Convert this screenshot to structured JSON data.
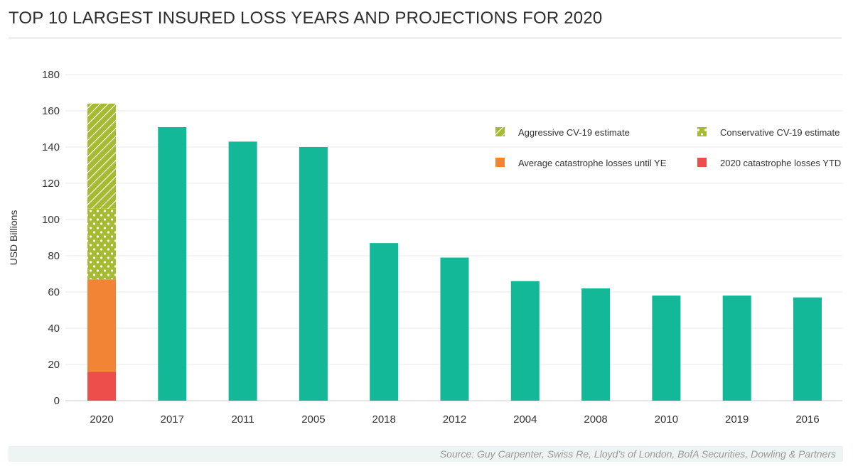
{
  "title": "TOP 10 LARGEST INSURED LOSS YEARS AND PROJECTIONS FOR 2020",
  "source": "Source: Guy Carpenter, Swiss Re, Lloyd’s of London, BofA Securities, Dowling & Partners",
  "colors": {
    "bar": "#12b897",
    "ytd": "#ee4e4b",
    "average": "#f28436",
    "conservative": "#a6bb32",
    "aggressive": "#a6bb32",
    "grid": "#e8e8e8",
    "axis_text": "#333333"
  },
  "chart_data": {
    "type": "bar",
    "title": "TOP 10 LARGEST INSURED LOSS YEARS AND PROJECTIONS FOR 2020",
    "xlabel": "",
    "ylabel": "USD Billions",
    "ylim": [
      0,
      180
    ],
    "yticks": [
      0,
      20,
      40,
      60,
      80,
      100,
      120,
      140,
      160,
      180
    ],
    "grid": true,
    "legend_position": "top-right",
    "categories": [
      "2020",
      "2017",
      "2011",
      "2005",
      "2018",
      "2012",
      "2004",
      "2008",
      "2010",
      "2019",
      "2016"
    ],
    "values": [
      null,
      151,
      143,
      140,
      87,
      79,
      66,
      62,
      58,
      58,
      57
    ],
    "stack_2020": [
      {
        "name": "2020 catastrophe losses YTD",
        "key": "ytd",
        "value": 16
      },
      {
        "name": "Average catastrophe losses until YE",
        "key": "average",
        "value": 51
      },
      {
        "name": "Conservative CV-19 estimate",
        "key": "conservative",
        "value": 39
      },
      {
        "name": "Aggressive CV-19 estimate",
        "key": "aggressive",
        "value": 58
      }
    ],
    "legend": [
      {
        "label": "Aggressive CV-19 estimate",
        "key": "aggressive"
      },
      {
        "label": "Conservative CV-19 estimate",
        "key": "conservative"
      },
      {
        "label": "Average catastrophe losses until YE",
        "key": "average"
      },
      {
        "label": "2020 catastrophe losses YTD",
        "key": "ytd"
      }
    ]
  }
}
